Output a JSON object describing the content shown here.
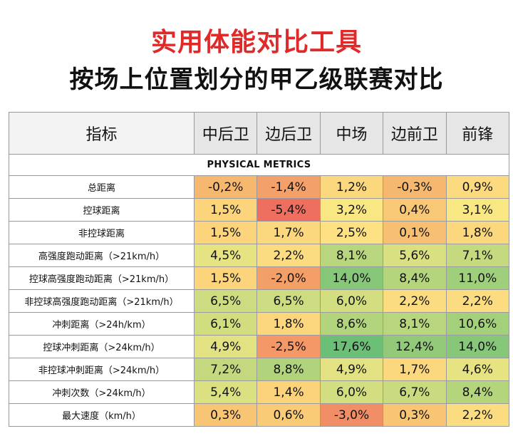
{
  "title": "实用体能对比工具",
  "subtitle": "按场上位置划分的甲乙级联赛对比",
  "table": {
    "header_metric": "指标",
    "positions": [
      "中后卫",
      "边后卫",
      "中场",
      "边前卫",
      "前锋"
    ],
    "section_label": "PHYSICAL METRICS",
    "rows": [
      {
        "label": "总距离",
        "values": [
          "-0,2%",
          "-1,4%",
          "1,2%",
          "-0,3%",
          "0,9%"
        ],
        "colors": [
          "#f6b86f",
          "#f4a06a",
          "#fbd77d",
          "#f6b86f",
          "#fcdb80"
        ]
      },
      {
        "label": "控球距离",
        "values": [
          "1,5%",
          "-5,4%",
          "3,2%",
          "0,4%",
          "3,1%"
        ],
        "colors": [
          "#fbd47b",
          "#ee6f60",
          "#f8e783",
          "#f9c876",
          "#f8e783"
        ]
      },
      {
        "label": "非控球距离",
        "values": [
          "1,5%",
          "1,7%",
          "2,5%",
          "0,1%",
          "1,8%"
        ],
        "colors": [
          "#fbd47b",
          "#fbd77d",
          "#fde182",
          "#f7bf72",
          "#fbd77d"
        ]
      },
      {
        "label": "高强度跑动距离（>21km/h）",
        "values": [
          "4,5%",
          "2,2%",
          "8,1%",
          "5,6%",
          "7,1%"
        ],
        "colors": [
          "#e6e482",
          "#fcdc80",
          "#b8d67d",
          "#d9e081",
          "#c5d97e"
        ]
      },
      {
        "label": "控球高强度跑动距离（>21km/h）",
        "values": [
          "1,5%",
          "-2,0%",
          "14,0%",
          "8,4%",
          "11,0%"
        ],
        "colors": [
          "#fbd47b",
          "#f59f68",
          "#86c77a",
          "#b5d57c",
          "#9fcf7b"
        ]
      },
      {
        "label": "非控球高强度跑动距离（>21km/h）",
        "values": [
          "6,5%",
          "6,5%",
          "6,0%",
          "2,2%",
          "2,2%"
        ],
        "colors": [
          "#cddc80",
          "#cddc80",
          "#d3de80",
          "#fcdc80",
          "#fcdc80"
        ]
      },
      {
        "label": "冲刺距离（>24h/km）",
        "values": [
          "6,1%",
          "1,8%",
          "8,6%",
          "8,1%",
          "10,6%"
        ],
        "colors": [
          "#d2dd80",
          "#fbd67c",
          "#b2d47d",
          "#b8d67d",
          "#a2d07b"
        ]
      },
      {
        "label": "控球冲刺距离（>24km/h）",
        "values": [
          "4,9%",
          "-2,5%",
          "17,6%",
          "12,4%",
          "14,0%"
        ],
        "colors": [
          "#e3e283",
          "#f49868",
          "#6cbf77",
          "#92ca7a",
          "#86c77a"
        ]
      },
      {
        "label": "非控球冲刺距离（>24km/h）",
        "values": [
          "7,2%",
          "8,8%",
          "4,9%",
          "1,7%",
          "4,6%"
        ],
        "colors": [
          "#c4d97e",
          "#b0d37c",
          "#e3e283",
          "#fbd77d",
          "#e6e482"
        ]
      },
      {
        "label": "冲刺次数（>24km/h）",
        "values": [
          "5,4%",
          "1,4%",
          "6,0%",
          "6,7%",
          "8,4%"
        ],
        "colors": [
          "#dbe081",
          "#fbd37b",
          "#d3de80",
          "#cadb7f",
          "#b5d57c"
        ]
      },
      {
        "label": "最大速度（km/h）",
        "values": [
          "0,3%",
          "0,6%",
          "-3,0%",
          "0,3%",
          "2,2%"
        ],
        "colors": [
          "#f8c574",
          "#f9cb77",
          "#f28e66",
          "#f8c574",
          "#fcdc80"
        ]
      }
    ]
  }
}
